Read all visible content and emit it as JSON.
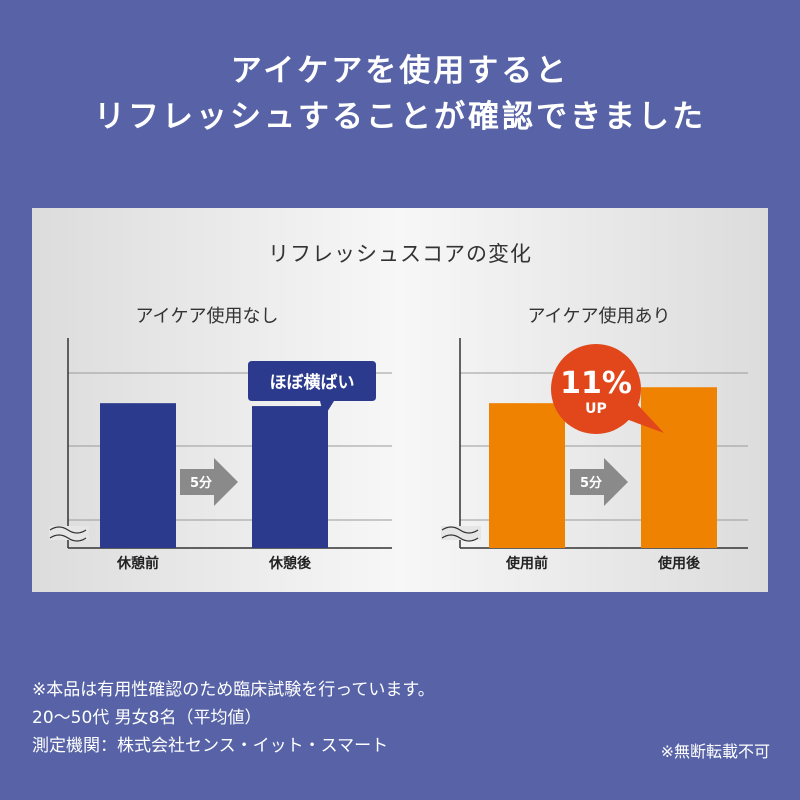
{
  "headline": {
    "line1": "アイケアを使用すると",
    "line2": "リフレッシュすることが確認できました"
  },
  "panel_title": "リフレッシュスコアの変化",
  "colors": {
    "background": "#5763a6",
    "navy_bar": "#2b3a8c",
    "orange_bar": "#ef8200",
    "badge_red": "#e2471b",
    "arrow_gray": "#8a8a8a"
  },
  "chart_data": [
    {
      "type": "bar",
      "title": "アイケア使用なし",
      "categories": [
        "休憩前",
        "休憩後"
      ],
      "values": [
        100,
        98
      ],
      "ylim": [
        0,
        145
      ],
      "axis_break": true,
      "arrow_label": "5分",
      "callout": "ほぼ横ばい",
      "color": "#2b3a8c"
    },
    {
      "type": "bar",
      "title": "アイケア使用あり",
      "categories": [
        "使用前",
        "使用後"
      ],
      "values": [
        100,
        111
      ],
      "ylim": [
        0,
        145
      ],
      "axis_break": true,
      "arrow_label": "5分",
      "badge_value": "11%",
      "badge_sub": "UP",
      "color": "#ef8200"
    }
  ],
  "notes": [
    "※本品は有用性確認のため臨床試験を行っています。",
    "20〜50代 男女8名（平均値）",
    "測定機関：株式会社センス・イット・スマート"
  ],
  "copyright": "※無断転載不可"
}
